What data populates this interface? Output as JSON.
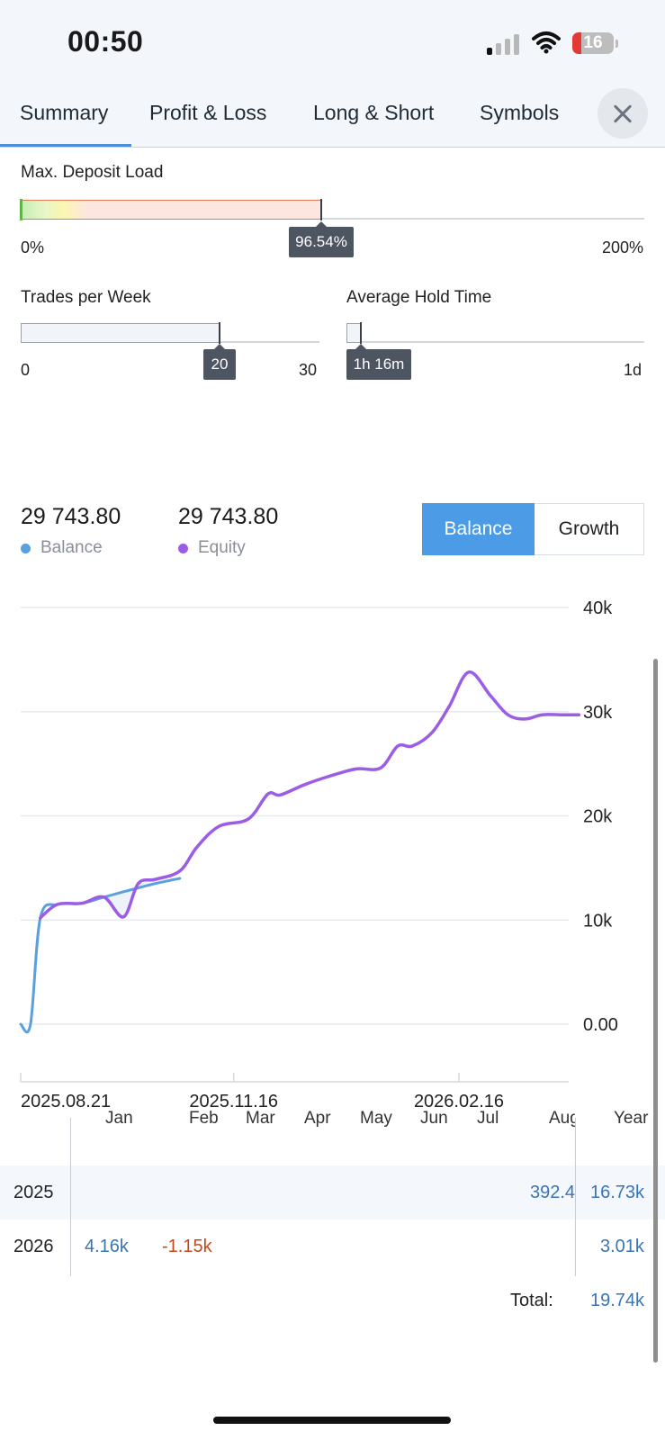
{
  "status_bar": {
    "time": "00:50",
    "battery": "16"
  },
  "tabs": [
    {
      "label": "Summary"
    },
    {
      "label": "Profit & Loss"
    },
    {
      "label": "Long & Short"
    },
    {
      "label": "Symbols"
    }
  ],
  "deposit_load": {
    "label": "Max. Deposit Load",
    "min": "0%",
    "max": "200%",
    "value_label": "96.54%",
    "value_fraction": 0.4827
  },
  "trades_per_week": {
    "label": "Trades per Week",
    "min": "0",
    "max": "30",
    "value_label": "20",
    "value_fraction": 0.667
  },
  "hold_time": {
    "label": "Average Hold Time",
    "min": "1h 16m",
    "max": "1d",
    "value_label": "1h 16m",
    "value_fraction": 0.053
  },
  "summary": {
    "balance_value": "29 743.80",
    "balance_label": "Balance",
    "equity_value": "29 743.80",
    "equity_label": "Equity",
    "toggle_balance": "Balance",
    "toggle_growth": "Growth",
    "balance_color": "#5a9fe0",
    "equity_color": "#9b5de5",
    "accent": "#4b9be6"
  },
  "chart_data": {
    "type": "line",
    "x_tick_labels": [
      "2025.08.21",
      "2025.11.16",
      "2026.02.16"
    ],
    "y_tick_labels": [
      "0.00",
      "10k",
      "20k",
      "30k",
      "40k"
    ],
    "ylim": [
      0,
      40000
    ],
    "grid": true,
    "series": [
      {
        "name": "Balance",
        "color": "#5a9fe0",
        "x": [
          "2025.08.21",
          "2025.08.25",
          "2025.08.29",
          "2025.09.05",
          "2025.09.15",
          "2025.09.24",
          "2025.10.05",
          "2025.10.15",
          "2025.10.25"
        ],
        "values": [
          0,
          0,
          10200,
          11500,
          11600,
          12200,
          12900,
          13500,
          14000
        ]
      },
      {
        "name": "Equity",
        "color": "#9b5de5",
        "x": [
          "2025.08.29",
          "2025.09.05",
          "2025.09.15",
          "2025.09.24",
          "2025.10.02",
          "2025.10.08",
          "2025.10.15",
          "2025.10.25",
          "2025.11.01",
          "2025.11.10",
          "2025.11.22",
          "2025.11.30",
          "2025.12.05",
          "2025.12.15",
          "2025.12.25",
          "2026.01.05",
          "2026.01.15",
          "2026.01.22",
          "2026.01.28",
          "2026.02.05",
          "2026.02.12",
          "2026.02.20",
          "2026.03.01",
          "2026.03.08",
          "2026.03.15",
          "2026.03.22",
          "2026.03.30",
          "2026.04.06"
        ],
        "values": [
          10200,
          11500,
          11600,
          12200,
          10300,
          13500,
          13900,
          14700,
          17000,
          19000,
          19700,
          22100,
          22000,
          23000,
          23800,
          24500,
          24600,
          26700,
          26700,
          28000,
          30500,
          33800,
          31500,
          29700,
          29300,
          29700,
          29700,
          29700
        ]
      }
    ]
  },
  "monthly": {
    "months": [
      "Jan",
      "Feb",
      "Mar",
      "Apr",
      "May",
      "Jun",
      "Jul",
      "Aug"
    ],
    "year_header": "Year",
    "rows": [
      {
        "year": "2025",
        "aug": "392.4",
        "year_total": "16.73k"
      },
      {
        "year": "2026",
        "jan": "4.16k",
        "feb": "-1.15k",
        "year_total": "3.01k"
      }
    ],
    "total_label": "Total:",
    "total_value": "19.74k",
    "positive_color": "#3a74b6",
    "negative_color": "#c4481b"
  }
}
